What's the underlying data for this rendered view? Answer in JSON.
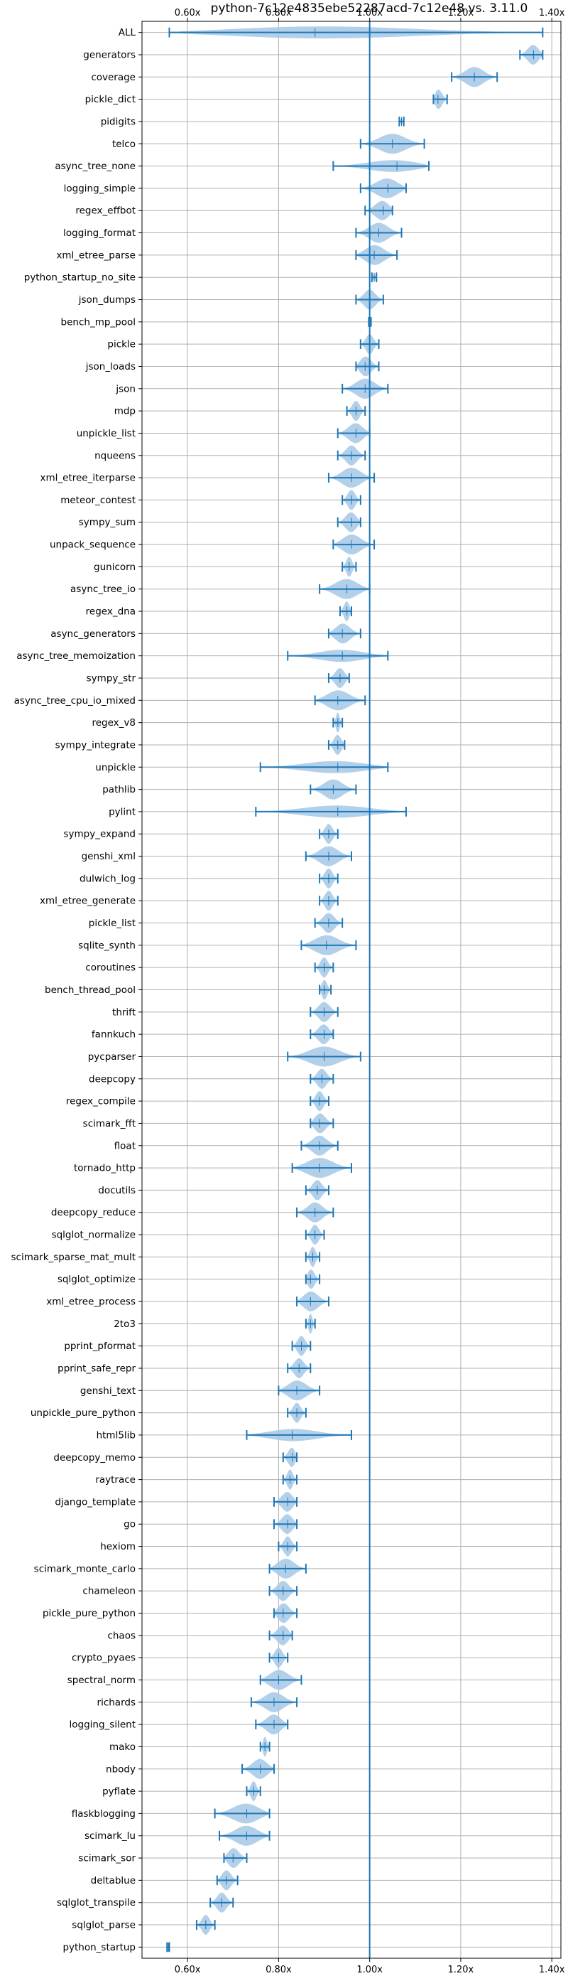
{
  "chart_data": {
    "type": "violin",
    "title": "python-7c12e4835ebe52287acd-7c12e48 vs. 3.11.0",
    "xlim": [
      0.5,
      1.42
    ],
    "xticks": [
      0.6,
      0.8,
      1.0,
      1.2,
      1.4
    ],
    "xtick_labels": [
      "0.60x",
      "0.80x",
      "1.00x",
      "1.20x",
      "1.40x"
    ],
    "reference_line": 1.0,
    "grid": true,
    "colors": {
      "body": "#a6c8e6",
      "line": "#1f77b4",
      "grid": "#b0b0b0"
    },
    "categories": [
      {
        "name": "ALL",
        "min": 0.56,
        "median": 0.88,
        "max": 1.38
      },
      {
        "name": "generators",
        "min": 1.33,
        "median": 1.36,
        "max": 1.38
      },
      {
        "name": "coverage",
        "min": 1.18,
        "median": 1.23,
        "max": 1.28
      },
      {
        "name": "pickle_dict",
        "min": 1.14,
        "median": 1.15,
        "max": 1.17
      },
      {
        "name": "pidigits",
        "min": 1.065,
        "median": 1.07,
        "max": 1.075
      },
      {
        "name": "telco",
        "min": 0.98,
        "median": 1.05,
        "max": 1.12
      },
      {
        "name": "async_tree_none",
        "min": 0.92,
        "median": 1.06,
        "max": 1.13
      },
      {
        "name": "logging_simple",
        "min": 0.98,
        "median": 1.04,
        "max": 1.08
      },
      {
        "name": "regex_effbot",
        "min": 0.99,
        "median": 1.03,
        "max": 1.05
      },
      {
        "name": "logging_format",
        "min": 0.97,
        "median": 1.02,
        "max": 1.07
      },
      {
        "name": "xml_etree_parse",
        "min": 0.97,
        "median": 1.01,
        "max": 1.06
      },
      {
        "name": "python_startup_no_site",
        "min": 1.005,
        "median": 1.01,
        "max": 1.015
      },
      {
        "name": "json_dumps",
        "min": 0.97,
        "median": 1.0,
        "max": 1.03
      },
      {
        "name": "bench_mp_pool",
        "min": 0.998,
        "median": 1.0,
        "max": 1.003
      },
      {
        "name": "pickle",
        "min": 0.98,
        "median": 1.0,
        "max": 1.02
      },
      {
        "name": "json_loads",
        "min": 0.97,
        "median": 0.99,
        "max": 1.02
      },
      {
        "name": "json",
        "min": 0.94,
        "median": 0.99,
        "max": 1.04
      },
      {
        "name": "mdp",
        "min": 0.95,
        "median": 0.97,
        "max": 0.99
      },
      {
        "name": "unpickle_list",
        "min": 0.93,
        "median": 0.97,
        "max": 1.0
      },
      {
        "name": "nqueens",
        "min": 0.93,
        "median": 0.96,
        "max": 0.99
      },
      {
        "name": "xml_etree_iterparse",
        "min": 0.91,
        "median": 0.96,
        "max": 1.01
      },
      {
        "name": "meteor_contest",
        "min": 0.94,
        "median": 0.96,
        "max": 0.98
      },
      {
        "name": "sympy_sum",
        "min": 0.93,
        "median": 0.96,
        "max": 0.98
      },
      {
        "name": "unpack_sequence",
        "min": 0.92,
        "median": 0.96,
        "max": 1.01
      },
      {
        "name": "gunicorn",
        "min": 0.94,
        "median": 0.955,
        "max": 0.97
      },
      {
        "name": "async_tree_io",
        "min": 0.89,
        "median": 0.95,
        "max": 1.0
      },
      {
        "name": "regex_dna",
        "min": 0.935,
        "median": 0.95,
        "max": 0.96
      },
      {
        "name": "async_generators",
        "min": 0.91,
        "median": 0.94,
        "max": 0.98
      },
      {
        "name": "async_tree_memoization",
        "min": 0.82,
        "median": 0.94,
        "max": 1.04
      },
      {
        "name": "sympy_str",
        "min": 0.91,
        "median": 0.935,
        "max": 0.955
      },
      {
        "name": "async_tree_cpu_io_mixed",
        "min": 0.88,
        "median": 0.93,
        "max": 0.99
      },
      {
        "name": "regex_v8",
        "min": 0.92,
        "median": 0.93,
        "max": 0.94
      },
      {
        "name": "sympy_integrate",
        "min": 0.91,
        "median": 0.93,
        "max": 0.945
      },
      {
        "name": "unpickle",
        "min": 0.76,
        "median": 0.93,
        "max": 1.04
      },
      {
        "name": "pathlib",
        "min": 0.87,
        "median": 0.92,
        "max": 0.97
      },
      {
        "name": "pylint",
        "min": 0.75,
        "median": 0.93,
        "max": 1.08
      },
      {
        "name": "sympy_expand",
        "min": 0.89,
        "median": 0.91,
        "max": 0.93
      },
      {
        "name": "genshi_xml",
        "min": 0.86,
        "median": 0.91,
        "max": 0.96
      },
      {
        "name": "dulwich_log",
        "min": 0.89,
        "median": 0.91,
        "max": 0.93
      },
      {
        "name": "xml_etree_generate",
        "min": 0.89,
        "median": 0.91,
        "max": 0.93
      },
      {
        "name": "pickle_list",
        "min": 0.88,
        "median": 0.91,
        "max": 0.94
      },
      {
        "name": "sqlite_synth",
        "min": 0.85,
        "median": 0.905,
        "max": 0.97
      },
      {
        "name": "coroutines",
        "min": 0.88,
        "median": 0.9,
        "max": 0.92
      },
      {
        "name": "bench_thread_pool",
        "min": 0.89,
        "median": 0.9,
        "max": 0.915
      },
      {
        "name": "thrift",
        "min": 0.87,
        "median": 0.9,
        "max": 0.93
      },
      {
        "name": "fannkuch",
        "min": 0.87,
        "median": 0.9,
        "max": 0.92
      },
      {
        "name": "pycparser",
        "min": 0.82,
        "median": 0.9,
        "max": 0.98
      },
      {
        "name": "deepcopy",
        "min": 0.87,
        "median": 0.895,
        "max": 0.92
      },
      {
        "name": "regex_compile",
        "min": 0.87,
        "median": 0.89,
        "max": 0.91
      },
      {
        "name": "scimark_fft",
        "min": 0.87,
        "median": 0.89,
        "max": 0.92
      },
      {
        "name": "float",
        "min": 0.85,
        "median": 0.89,
        "max": 0.93
      },
      {
        "name": "tornado_http",
        "min": 0.83,
        "median": 0.89,
        "max": 0.96
      },
      {
        "name": "docutils",
        "min": 0.86,
        "median": 0.885,
        "max": 0.91
      },
      {
        "name": "deepcopy_reduce",
        "min": 0.84,
        "median": 0.88,
        "max": 0.92
      },
      {
        "name": "sqlglot_normalize",
        "min": 0.86,
        "median": 0.88,
        "max": 0.9
      },
      {
        "name": "scimark_sparse_mat_mult",
        "min": 0.86,
        "median": 0.875,
        "max": 0.89
      },
      {
        "name": "sqlglot_optimize",
        "min": 0.86,
        "median": 0.87,
        "max": 0.89
      },
      {
        "name": "xml_etree_process",
        "min": 0.84,
        "median": 0.87,
        "max": 0.91
      },
      {
        "name": "2to3",
        "min": 0.86,
        "median": 0.87,
        "max": 0.88
      },
      {
        "name": "pprint_pformat",
        "min": 0.83,
        "median": 0.85,
        "max": 0.87
      },
      {
        "name": "pprint_safe_repr",
        "min": 0.82,
        "median": 0.845,
        "max": 0.87
      },
      {
        "name": "genshi_text",
        "min": 0.8,
        "median": 0.84,
        "max": 0.89
      },
      {
        "name": "unpickle_pure_python",
        "min": 0.82,
        "median": 0.84,
        "max": 0.86
      },
      {
        "name": "html5lib",
        "min": 0.73,
        "median": 0.83,
        "max": 0.96
      },
      {
        "name": "deepcopy_memo",
        "min": 0.81,
        "median": 0.83,
        "max": 0.84
      },
      {
        "name": "raytrace",
        "min": 0.81,
        "median": 0.825,
        "max": 0.84
      },
      {
        "name": "django_template",
        "min": 0.79,
        "median": 0.82,
        "max": 0.84
      },
      {
        "name": "go",
        "min": 0.79,
        "median": 0.82,
        "max": 0.84
      },
      {
        "name": "hexiom",
        "min": 0.8,
        "median": 0.82,
        "max": 0.84
      },
      {
        "name": "scimark_monte_carlo",
        "min": 0.78,
        "median": 0.815,
        "max": 0.86
      },
      {
        "name": "chameleon",
        "min": 0.78,
        "median": 0.81,
        "max": 0.84
      },
      {
        "name": "pickle_pure_python",
        "min": 0.79,
        "median": 0.81,
        "max": 0.84
      },
      {
        "name": "chaos",
        "min": 0.78,
        "median": 0.81,
        "max": 0.83
      },
      {
        "name": "crypto_pyaes",
        "min": 0.78,
        "median": 0.8,
        "max": 0.82
      },
      {
        "name": "spectral_norm",
        "min": 0.76,
        "median": 0.8,
        "max": 0.85
      },
      {
        "name": "richards",
        "min": 0.74,
        "median": 0.79,
        "max": 0.84
      },
      {
        "name": "logging_silent",
        "min": 0.75,
        "median": 0.79,
        "max": 0.82
      },
      {
        "name": "mako",
        "min": 0.76,
        "median": 0.77,
        "max": 0.78
      },
      {
        "name": "nbody",
        "min": 0.72,
        "median": 0.76,
        "max": 0.79
      },
      {
        "name": "pyflate",
        "min": 0.73,
        "median": 0.745,
        "max": 0.76
      },
      {
        "name": "flaskblogging",
        "min": 0.66,
        "median": 0.73,
        "max": 0.78
      },
      {
        "name": "scimark_lu",
        "min": 0.67,
        "median": 0.73,
        "max": 0.78
      },
      {
        "name": "scimark_sor",
        "min": 0.68,
        "median": 0.7,
        "max": 0.73
      },
      {
        "name": "deltablue",
        "min": 0.665,
        "median": 0.685,
        "max": 0.71
      },
      {
        "name": "sqlglot_transpile",
        "min": 0.65,
        "median": 0.675,
        "max": 0.7
      },
      {
        "name": "sqlglot_parse",
        "min": 0.62,
        "median": 0.64,
        "max": 0.66
      },
      {
        "name": "python_startup",
        "min": 0.555,
        "median": 0.558,
        "max": 0.56
      }
    ]
  }
}
